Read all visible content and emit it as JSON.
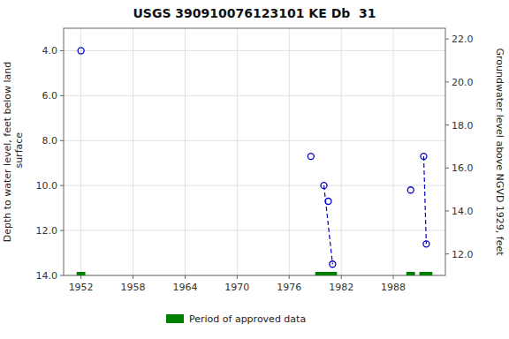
{
  "chart_data": {
    "type": "scatter",
    "title": "USGS 390910076123101 KE Db  31",
    "ylabel": "Depth to water level, feet below land\n surface",
    "y2label": "Groundwater level above NGVD 1929, feet",
    "xlim": [
      1950,
      1994
    ],
    "ylim": [
      14.0,
      3.0
    ],
    "y2lim": [
      11.0,
      22.5
    ],
    "xticks": [
      1952,
      1958,
      1964,
      1970,
      1976,
      1982,
      1988
    ],
    "yticks": [
      {
        "value": 4.0,
        "label": "4.0"
      },
      {
        "value": 6.0,
        "label": "6.0"
      },
      {
        "value": 8.0,
        "label": "8.0"
      },
      {
        "value": 10.0,
        "label": "10.0"
      },
      {
        "value": 12.0,
        "label": "12.0"
      },
      {
        "value": 14.0,
        "label": "14.0"
      }
    ],
    "y2ticks": [
      {
        "value": 12.0,
        "label": "12.0"
      },
      {
        "value": 14.0,
        "label": "14.0"
      },
      {
        "value": 16.0,
        "label": "16.0"
      },
      {
        "value": 18.0,
        "label": "18.0"
      },
      {
        "value": 20.0,
        "label": "20.0"
      },
      {
        "value": 22.0,
        "label": "22.0"
      }
    ],
    "grid": true,
    "legend": "bottom",
    "series": [
      {
        "type": "scatter",
        "marker": "open-circle",
        "color": "#0000cc",
        "x": [
          1952.0,
          1978.5,
          1980.0,
          1980.5,
          1981.0,
          1990.0,
          1991.5,
          1991.8
        ],
        "values": [
          4.0,
          8.7,
          10.0,
          10.7,
          13.5,
          10.2,
          8.7,
          12.6
        ]
      },
      {
        "type": "line",
        "line_style": "dashed",
        "color": "#0000cc",
        "x": [
          1980.0,
          1981.0
        ],
        "values": [
          10.0,
          13.5
        ]
      },
      {
        "type": "line",
        "line_style": "dashed",
        "color": "#0000cc",
        "x": [
          1991.5,
          1991.8
        ],
        "values": [
          8.7,
          12.6
        ]
      },
      {
        "name": "Period of approved data",
        "type": "period",
        "color": "#008000",
        "starts": [
          1951.5,
          1979.0,
          1989.5,
          1991.0
        ],
        "ends": [
          1952.5,
          1981.5,
          1990.5,
          1992.5
        ]
      }
    ]
  }
}
